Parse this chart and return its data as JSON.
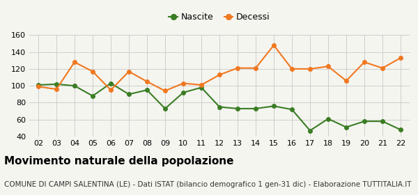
{
  "years": [
    "02",
    "03",
    "04",
    "05",
    "06",
    "07",
    "08",
    "09",
    "10",
    "11",
    "12",
    "13",
    "14",
    "15",
    "16",
    "17",
    "18",
    "19",
    "20",
    "21",
    "22"
  ],
  "nascite": [
    101,
    102,
    100,
    88,
    103,
    90,
    95,
    73,
    92,
    98,
    75,
    73,
    73,
    76,
    72,
    47,
    61,
    51,
    58,
    58,
    48
  ],
  "decessi": [
    99,
    96,
    128,
    117,
    95,
    117,
    105,
    94,
    103,
    101,
    113,
    121,
    121,
    148,
    120,
    120,
    123,
    106,
    128,
    121,
    133
  ],
  "nascite_color": "#3a7d24",
  "decessi_color": "#f07820",
  "bg_color": "#f5f5f0",
  "grid_color": "#cccccc",
  "ylim": [
    40,
    160
  ],
  "yticks": [
    40,
    60,
    80,
    100,
    120,
    140,
    160
  ],
  "title": "Movimento naturale della popolazione",
  "subtitle": "COMUNE DI CAMPI SALENTINA (LE) - Dati ISTAT (bilancio demografico 1 gen-31 dic) - Elaborazione TUTTITALIA.IT",
  "legend_labels": [
    "Nascite",
    "Decessi"
  ],
  "title_fontsize": 11,
  "subtitle_fontsize": 7.5,
  "axis_fontsize": 8,
  "legend_fontsize": 9
}
